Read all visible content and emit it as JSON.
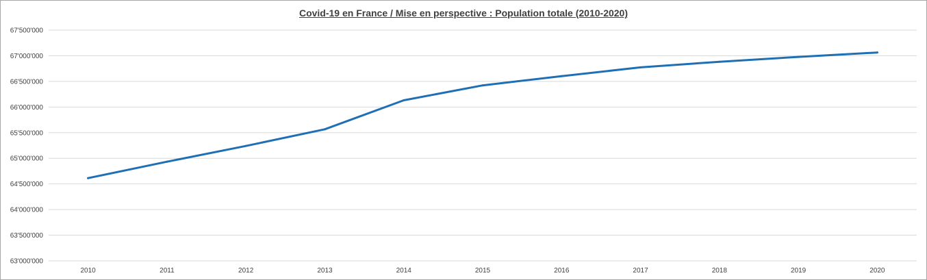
{
  "chart_data": {
    "type": "line",
    "title": "Covid-19 en France / Mise en perspective : Population totale (2010-2020)",
    "xlabel": "",
    "ylabel": "",
    "categories": [
      "2010",
      "2011",
      "2012",
      "2013",
      "2014",
      "2015",
      "2016",
      "2017",
      "2018",
      "2019",
      "2020"
    ],
    "series": [
      {
        "values": [
          64613000,
          64933000,
          65241000,
          65566000,
          66131000,
          66422000,
          66603000,
          66774000,
          66883000,
          66978000,
          67064000
        ],
        "color": "#1f6fb5"
      }
    ],
    "ylim": [
      63000000,
      67500000
    ],
    "yticks": [
      {
        "value": 63000000,
        "label": "63'000'000"
      },
      {
        "value": 63500000,
        "label": "63'500'000"
      },
      {
        "value": 64000000,
        "label": "64'000'000"
      },
      {
        "value": 64500000,
        "label": "64'500'000"
      },
      {
        "value": 65000000,
        "label": "65'000'000"
      },
      {
        "value": 65500000,
        "label": "65'500'000"
      },
      {
        "value": 66000000,
        "label": "66'000'000"
      },
      {
        "value": 66500000,
        "label": "66'500'000"
      },
      {
        "value": 67000000,
        "label": "67'000'000"
      },
      {
        "value": 67500000,
        "label": "67'500'000"
      }
    ],
    "grid": true,
    "legend": "none",
    "colors": {
      "gridline": "#d9d9d9",
      "axis_text": "#404040"
    }
  }
}
